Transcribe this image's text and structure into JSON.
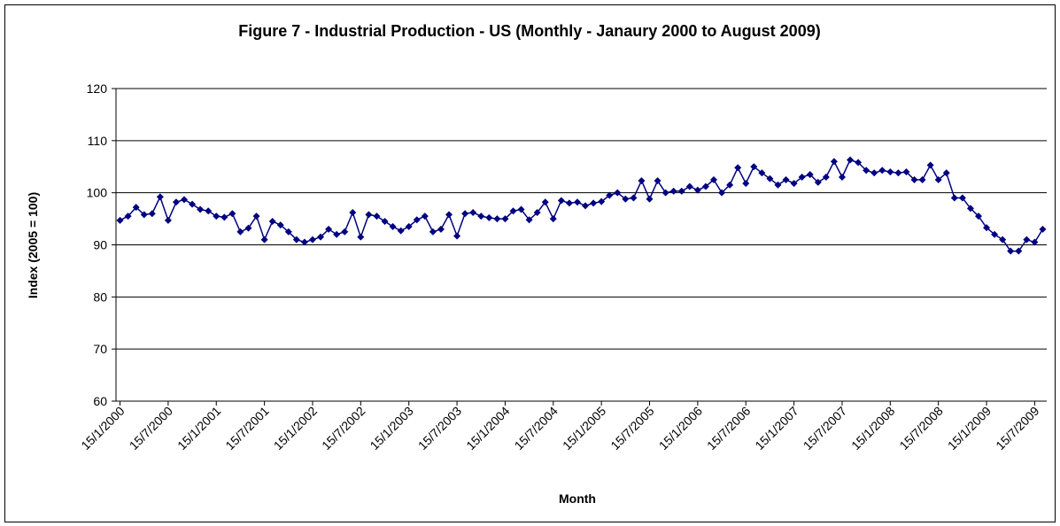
{
  "chart_data": {
    "type": "line",
    "title": "Figure 7 - Industrial Production - US (Monthly - Janaury 2000 to August 2009)",
    "x_label": "Month",
    "y_label": "Index (2005 = 100)",
    "categories": [
      "15/1/2000",
      null,
      null,
      null,
      null,
      null,
      "15/7/2000",
      null,
      null,
      null,
      null,
      null,
      "15/1/2001",
      null,
      null,
      null,
      null,
      null,
      "15/7/2001",
      null,
      null,
      null,
      null,
      null,
      "15/1/2002",
      null,
      null,
      null,
      null,
      null,
      "15/7/2002",
      null,
      null,
      null,
      null,
      null,
      "15/1/2003",
      null,
      null,
      null,
      null,
      null,
      "15/7/2003",
      null,
      null,
      null,
      null,
      null,
      "15/1/2004",
      null,
      null,
      null,
      null,
      null,
      "15/7/2004",
      null,
      null,
      null,
      null,
      null,
      "15/1/2005",
      null,
      null,
      null,
      null,
      null,
      "15/7/2005",
      null,
      null,
      null,
      null,
      null,
      "15/1/2006",
      null,
      null,
      null,
      null,
      null,
      "15/7/2006",
      null,
      null,
      null,
      null,
      null,
      "15/1/2007",
      null,
      null,
      null,
      null,
      null,
      "15/7/2007",
      null,
      null,
      null,
      null,
      null,
      "15/1/2008",
      null,
      null,
      null,
      null,
      null,
      "15/7/2008",
      null,
      null,
      null,
      null,
      null,
      "15/1/2009",
      null,
      null,
      null,
      null,
      null,
      "15/7/2009",
      null
    ],
    "series": [
      {
        "name": "Industrial Production",
        "color": "#000080",
        "values": [
          94.7,
          95.5,
          97.2,
          95.8,
          96.0,
          99.2,
          94.7,
          98.2,
          98.7,
          97.8,
          96.8,
          96.5,
          95.5,
          95.3,
          96.0,
          92.5,
          93.2,
          95.5,
          91.0,
          94.5,
          93.8,
          92.5,
          91.0,
          90.5,
          91.0,
          91.5,
          93.0,
          92.0,
          92.5,
          96.2,
          91.5,
          95.8,
          95.5,
          94.5,
          93.5,
          92.7,
          93.5,
          94.8,
          95.5,
          92.5,
          93.0,
          95.8,
          91.7,
          96.0,
          96.2,
          95.5,
          95.2,
          95.0,
          95.0,
          96.5,
          96.8,
          94.8,
          96.2,
          98.2,
          95.0,
          98.5,
          98.0,
          98.2,
          97.5,
          98.0,
          98.3,
          99.5,
          100.0,
          98.8,
          99.0,
          102.3,
          98.8,
          102.3,
          100.0,
          100.3,
          100.3,
          101.2,
          100.5,
          101.2,
          102.5,
          100.0,
          101.5,
          104.8,
          101.8,
          105.0,
          103.8,
          102.7,
          101.5,
          102.5,
          101.8,
          103.0,
          103.5,
          102.0,
          103.0,
          106.0,
          103.0,
          106.3,
          105.8,
          104.3,
          103.8,
          104.3,
          104.0,
          103.8,
          104.0,
          102.5,
          102.5,
          105.3,
          102.5,
          103.8,
          99.0,
          99.0,
          97.0,
          95.5,
          93.3,
          92.0,
          91.0,
          88.8,
          88.8,
          91.0,
          90.5,
          93.0
        ]
      }
    ],
    "ylim": [
      60,
      120
    ],
    "yticks": [
      60,
      70,
      80,
      90,
      100,
      110,
      120
    ],
    "grid": true
  }
}
